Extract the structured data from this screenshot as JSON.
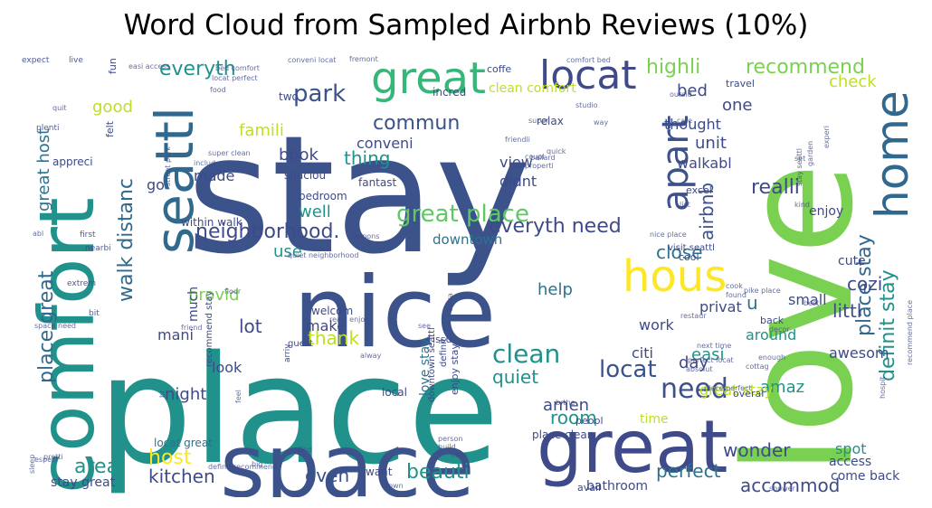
{
  "title": "Word Cloud from Sampled Airbnb Reviews (10%)",
  "colors": {
    "background": "#ffffff",
    "title": "#000000"
  },
  "words": [
    {
      "text": "stay",
      "color": "#3b528b"
    },
    {
      "text": "place",
      "color": "#21918c"
    },
    {
      "text": "love",
      "color": "#7ad151"
    },
    {
      "text": "nice",
      "color": "#3b528b"
    },
    {
      "text": "comfort",
      "color": "#21918c"
    },
    {
      "text": "space",
      "color": "#3b528b"
    },
    {
      "text": "great",
      "color": "#3e4a89"
    },
    {
      "text": "seattl",
      "color": "#31688e"
    },
    {
      "text": "hous",
      "color": "#fde725"
    },
    {
      "text": "home",
      "color": "#31688e"
    },
    {
      "text": "great",
      "color": "#35b779"
    },
    {
      "text": "locat",
      "color": "#3e4a89"
    },
    {
      "text": "apart",
      "color": "#3b528b"
    },
    {
      "text": "need",
      "color": "#3b528b"
    },
    {
      "text": "neighborhood.",
      "color": "#3e4a89"
    },
    {
      "text": "great place",
      "color": "#5ec962"
    },
    {
      "text": "clean",
      "color": "#21918c"
    },
    {
      "text": "locat",
      "color": "#3b528b"
    },
    {
      "text": "park",
      "color": "#3b528b"
    },
    {
      "text": "everyth",
      "color": "#21918c"
    },
    {
      "text": "highli",
      "color": "#7ad151"
    },
    {
      "text": "recommend",
      "color": "#7ad151"
    },
    {
      "text": "commun",
      "color": "#3b528b"
    },
    {
      "text": "realli",
      "color": "#3e4a89"
    },
    {
      "text": "everyth need",
      "color": "#3e4a89"
    },
    {
      "text": "place stay",
      "color": "#31688e"
    },
    {
      "text": "definit stay",
      "color": "#21918c"
    },
    {
      "text": "place great",
      "color": "#31688e"
    },
    {
      "text": "great host",
      "color": "#2c728e"
    },
    {
      "text": "walk distanc",
      "color": "#31688e"
    },
    {
      "text": "room",
      "color": "#21918c"
    },
    {
      "text": "kitchen",
      "color": "#3e4a89"
    },
    {
      "text": "host",
      "color": "#fde725"
    },
    {
      "text": "area",
      "color": "#21918c"
    },
    {
      "text": "wonder",
      "color": "#3e4a89"
    },
    {
      "text": "perfect",
      "color": "#2c728e"
    },
    {
      "text": "accommod",
      "color": "#3e4a89"
    },
    {
      "text": "beauti",
      "color": "#21918c"
    },
    {
      "text": "even",
      "color": "#3b528b"
    },
    {
      "text": "quiet",
      "color": "#21918c"
    },
    {
      "text": "cozi",
      "color": "#3e4a89"
    },
    {
      "text": "littl",
      "color": "#3e4a89"
    },
    {
      "text": "airbnb",
      "color": "#3b528b"
    },
    {
      "text": "unit",
      "color": "#3e4a89"
    },
    {
      "text": "book",
      "color": "#3e4a89"
    },
    {
      "text": "thing",
      "color": "#21918c"
    },
    {
      "text": "famili",
      "color": "#bddf26"
    },
    {
      "text": "good",
      "color": "#bddf26"
    },
    {
      "text": "well",
      "color": "#21918c"
    },
    {
      "text": "use",
      "color": "#21918c"
    },
    {
      "text": "provid",
      "color": "#7ad151"
    },
    {
      "text": "lot",
      "color": "#3e4a89"
    },
    {
      "text": "night",
      "color": "#3e4a89"
    },
    {
      "text": "thank",
      "color": "#bddf26"
    },
    {
      "text": "amen",
      "color": "#3e4a89"
    },
    {
      "text": "amaz",
      "color": "#21918c"
    },
    {
      "text": "day",
      "color": "#3e4a89"
    },
    {
      "text": "easi",
      "color": "#21918c"
    },
    {
      "text": "help",
      "color": "#2c728e"
    },
    {
      "text": "close",
      "color": "#2c728e"
    },
    {
      "text": "small",
      "color": "#3e4a89"
    },
    {
      "text": "check",
      "color": "#bddf26"
    },
    {
      "text": "bed",
      "color": "#3e4a89"
    },
    {
      "text": "one",
      "color": "#3e4a89"
    },
    {
      "text": "walkabl",
      "color": "#3e4a89"
    },
    {
      "text": "view",
      "color": "#3e4a89"
    },
    {
      "text": "didnt",
      "color": "#3e4a89"
    },
    {
      "text": "conveni",
      "color": "#3e4a89"
    },
    {
      "text": "made",
      "color": "#3e4a89"
    },
    {
      "text": "go",
      "color": "#3e4a89"
    },
    {
      "text": "downtown",
      "color": "#2c728e"
    },
    {
      "text": "clean comfort",
      "color": "#bddf26"
    },
    {
      "text": "thought",
      "color": "#3e4a89"
    },
    {
      "text": "awesom",
      "color": "#3e4a89"
    },
    {
      "text": "around",
      "color": "#21918c"
    },
    {
      "text": "enjoy",
      "color": "#3e4a89"
    },
    {
      "text": "cute",
      "color": "#3e4a89"
    },
    {
      "text": "privat",
      "color": "#3e4a89"
    },
    {
      "text": "work",
      "color": "#3e4a89"
    },
    {
      "text": "u",
      "color": "#2c728e"
    },
    {
      "text": "citi",
      "color": "#3e4a89"
    },
    {
      "text": "much",
      "color": "#3e4a89"
    },
    {
      "text": "look",
      "color": "#3e4a89"
    },
    {
      "text": "mani",
      "color": "#3e4a89"
    },
    {
      "text": "make",
      "color": "#3e4a89"
    },
    {
      "text": "love stay",
      "color": "#2c728e"
    },
    {
      "text": "spot",
      "color": "#21918c"
    },
    {
      "text": "time",
      "color": "#bddf26"
    },
    {
      "text": "great stay",
      "color": "#bddf26"
    },
    {
      "text": "access",
      "color": "#3e4a89"
    },
    {
      "text": "come back",
      "color": "#3e4a89"
    },
    {
      "text": "bathroom",
      "color": "#3e4a89"
    },
    {
      "text": "stay great",
      "color": "#3e4a89"
    },
    {
      "text": "locat great",
      "color": "#2c728e"
    },
    {
      "text": "within walk",
      "color": "#3e4a89"
    },
    {
      "text": "spaciou",
      "color": "#3e4a89"
    },
    {
      "text": "bedroom",
      "color": "#3e4a89"
    },
    {
      "text": "fantast",
      "color": "#3e4a89"
    },
    {
      "text": "relax",
      "color": "#3e4a89"
    },
    {
      "text": "felt",
      "color": "#3e4a89"
    },
    {
      "text": "appreci",
      "color": "#3e4a89"
    },
    {
      "text": "incred",
      "color": "#3e4a89"
    },
    {
      "text": "two",
      "color": "#3e4a89"
    },
    {
      "text": "travel",
      "color": "#3e4a89"
    },
    {
      "text": "coffe",
      "color": "#3e4a89"
    },
    {
      "text": "fun",
      "color": "#3e4a89"
    },
    {
      "text": "welcom",
      "color": "#3e4a89"
    },
    {
      "text": "guest",
      "color": "#3e4a89"
    },
    {
      "text": "local",
      "color": "#3e4a89"
    },
    {
      "text": "definit",
      "color": "#3e4a89"
    },
    {
      "text": "enjoy stay",
      "color": "#3e4a89"
    },
    {
      "text": "downtown seattl",
      "color": "#3e4a89"
    },
    {
      "text": "visit seattl",
      "color": "#3e4a89"
    },
    {
      "text": "overal",
      "color": "#3e4a89"
    },
    {
      "text": "back",
      "color": "#3e4a89"
    },
    {
      "text": "recommend stay",
      "color": "#3e4a89"
    },
    {
      "text": "place clean",
      "color": "#3e4a89"
    },
    {
      "text": "peopl",
      "color": "#3e4a89"
    },
    {
      "text": "want",
      "color": "#3e4a89"
    },
    {
      "text": "avail",
      "color": "#3e4a89"
    },
    {
      "text": "excel",
      "color": "#3e4a89"
    },
    {
      "text": "cool",
      "color": "#3e4a89"
    },
    {
      "text": "issu",
      "color": "#3e4a89"
    },
    {
      "text": "arriv",
      "color": "#3e4a89"
    },
    {
      "text": "nearbi",
      "color": "#3e4a89"
    },
    {
      "text": "first",
      "color": "#3e4a89"
    },
    {
      "text": "bit",
      "color": "#3e4a89"
    },
    {
      "text": "extrem",
      "color": "#3e4a89"
    },
    {
      "text": "expect",
      "color": "#3e4a89"
    },
    {
      "text": "live",
      "color": "#3e4a89"
    },
    {
      "text": "plenti",
      "color": "#3e4a89"
    },
    {
      "text": "quit",
      "color": "#3e4a89"
    },
    {
      "text": "includ",
      "color": "#3e4a89"
    },
    {
      "text": "food",
      "color": "#3e4a89"
    },
    {
      "text": "super",
      "color": "#3e4a89"
    },
    {
      "text": "quick",
      "color": "#3e4a89"
    },
    {
      "text": "coupl",
      "color": "#3e4a89"
    },
    {
      "text": "friendli",
      "color": "#3e4a89"
    },
    {
      "text": "studio",
      "color": "#3e4a89"
    },
    {
      "text": "comfort bed",
      "color": "#3e4a89"
    },
    {
      "text": "conveni locat",
      "color": "#3e4a89"
    },
    {
      "text": "locat perfect",
      "color": "#3e4a89"
    },
    {
      "text": "bed comfort",
      "color": "#3e4a89"
    },
    {
      "text": "easi access",
      "color": "#3e4a89"
    },
    {
      "text": "fremont",
      "color": "#3e4a89"
    },
    {
      "text": "ballard",
      "color": "#3e4a89"
    },
    {
      "text": "properti",
      "color": "#3e4a89"
    },
    {
      "text": "list",
      "color": "#3e4a89"
    },
    {
      "text": "abl",
      "color": "#3e4a89"
    },
    {
      "text": "nice place",
      "color": "#3e4a89"
    },
    {
      "text": "pike place",
      "color": "#3e4a89"
    },
    {
      "text": "cottag",
      "color": "#3e4a89"
    },
    {
      "text": "enough",
      "color": "#3e4a89"
    },
    {
      "text": "next time",
      "color": "#3e4a89"
    },
    {
      "text": "perfect locat",
      "color": "#3e4a89"
    },
    {
      "text": "absolut",
      "color": "#3e4a89"
    },
    {
      "text": "friend",
      "color": "#3e4a89"
    },
    {
      "text": "realli enjoy",
      "color": "#3e4a89"
    },
    {
      "text": "especi",
      "color": "#3e4a89"
    },
    {
      "text": "pretti",
      "color": "#3e4a89"
    },
    {
      "text": "definit recommend",
      "color": "#3e4a89"
    },
    {
      "text": "person",
      "color": "#3e4a89"
    },
    {
      "text": "build",
      "color": "#3e4a89"
    },
    {
      "text": "near",
      "color": "#3e4a89"
    },
    {
      "text": "shower",
      "color": "#3e4a89"
    },
    {
      "text": "space need",
      "color": "#3e4a89"
    },
    {
      "text": "quiet neighborhood",
      "color": "#3e4a89"
    },
    {
      "text": "cook",
      "color": "#3e4a89"
    },
    {
      "text": "found",
      "color": "#3e4a89"
    },
    {
      "text": "super clean",
      "color": "#3e4a89"
    },
    {
      "text": "street park",
      "color": "#3e4a89"
    },
    {
      "text": "stay seattl",
      "color": "#3e4a89"
    },
    {
      "text": "recommend place",
      "color": "#3e4a89"
    },
    {
      "text": "decor",
      "color": "#3e4a89"
    },
    {
      "text": "outsid",
      "color": "#3e4a89"
    },
    {
      "text": "experi",
      "color": "#3e4a89"
    },
    {
      "text": "place perfect",
      "color": "#3e4a89"
    },
    {
      "text": "kind",
      "color": "#3e4a89"
    },
    {
      "text": "garden",
      "color": "#3e4a89"
    },
    {
      "text": "set",
      "color": "#3e4a89"
    },
    {
      "text": "way",
      "color": "#3e4a89"
    },
    {
      "text": "cafe",
      "color": "#3e4a89"
    },
    {
      "text": "respons",
      "color": "#3e4a89"
    },
    {
      "text": "floor",
      "color": "#3e4a89"
    },
    {
      "text": "alway",
      "color": "#3e4a89"
    },
    {
      "text": "see",
      "color": "#3e4a89"
    },
    {
      "text": "extra",
      "color": "#3e4a89"
    },
    {
      "text": "brthe",
      "color": "#3e4a89"
    },
    {
      "text": "find",
      "color": "#3e4a89"
    },
    {
      "text": "big",
      "color": "#3e4a89"
    },
    {
      "text": "town",
      "color": "#3e4a89"
    },
    {
      "text": "sleep",
      "color": "#3e4a89"
    },
    {
      "text": "best",
      "color": "#3e4a89"
    },
    {
      "text": "hospit",
      "color": "#3e4a89"
    },
    {
      "text": "feel",
      "color": "#3e4a89"
    },
    {
      "text": "restaur",
      "color": "#3e4a89"
    },
    {
      "text": "br",
      "color": "#3e4a89"
    },
    {
      "text": "take",
      "color": "#3e4a89"
    }
  ]
}
